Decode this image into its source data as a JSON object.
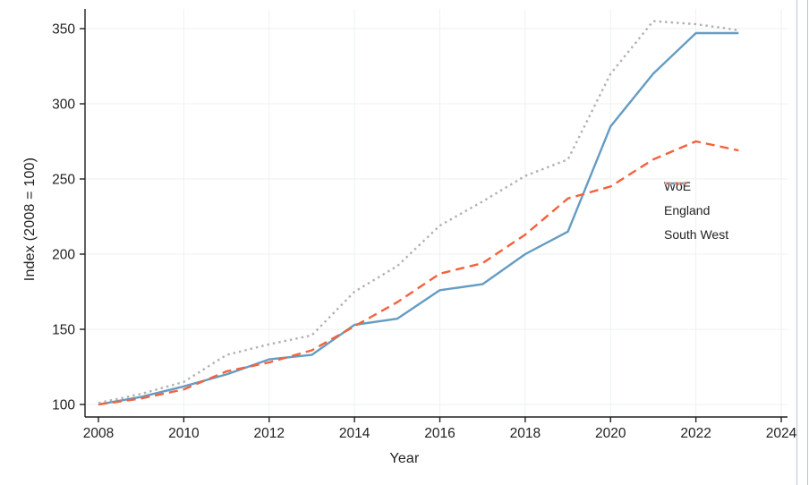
{
  "chart_data": {
    "type": "line",
    "title": "",
    "xlabel": "Year",
    "ylabel": "Index (2008 = 100)",
    "x": [
      2008,
      2009,
      2010,
      2011,
      2012,
      2013,
      2014,
      2015,
      2016,
      2017,
      2018,
      2019,
      2020,
      2021,
      2022,
      2023
    ],
    "xticks": [
      2008,
      2010,
      2012,
      2014,
      2016,
      2018,
      2020,
      2022,
      2024
    ],
    "yticks": [
      100,
      150,
      200,
      250,
      300,
      350
    ],
    "xlim": [
      2008,
      2024
    ],
    "ylim": [
      100,
      358
    ],
    "grid": true,
    "legend_position": "middle-right",
    "series": [
      {
        "name": "WoE",
        "color": "#649cc3",
        "style": "solid",
        "dash": "",
        "values": [
          100,
          105,
          112,
          120,
          130,
          133,
          153,
          157,
          176,
          180,
          200,
          215,
          285,
          320,
          347,
          347
        ]
      },
      {
        "name": "England",
        "color": "#f4613c",
        "style": "dashed",
        "dash": "10,6",
        "values": [
          100,
          104,
          110,
          122,
          128,
          136,
          152,
          168,
          187,
          194,
          213,
          237,
          245,
          263,
          275,
          269
        ]
      },
      {
        "name": "South West",
        "color": "#b2b2b2",
        "style": "dotted",
        "dash": "2.5,4",
        "values": [
          101,
          107,
          115,
          133,
          140,
          146,
          175,
          192,
          219,
          235,
          252,
          263,
          320,
          355,
          353,
          349
        ]
      }
    ]
  }
}
